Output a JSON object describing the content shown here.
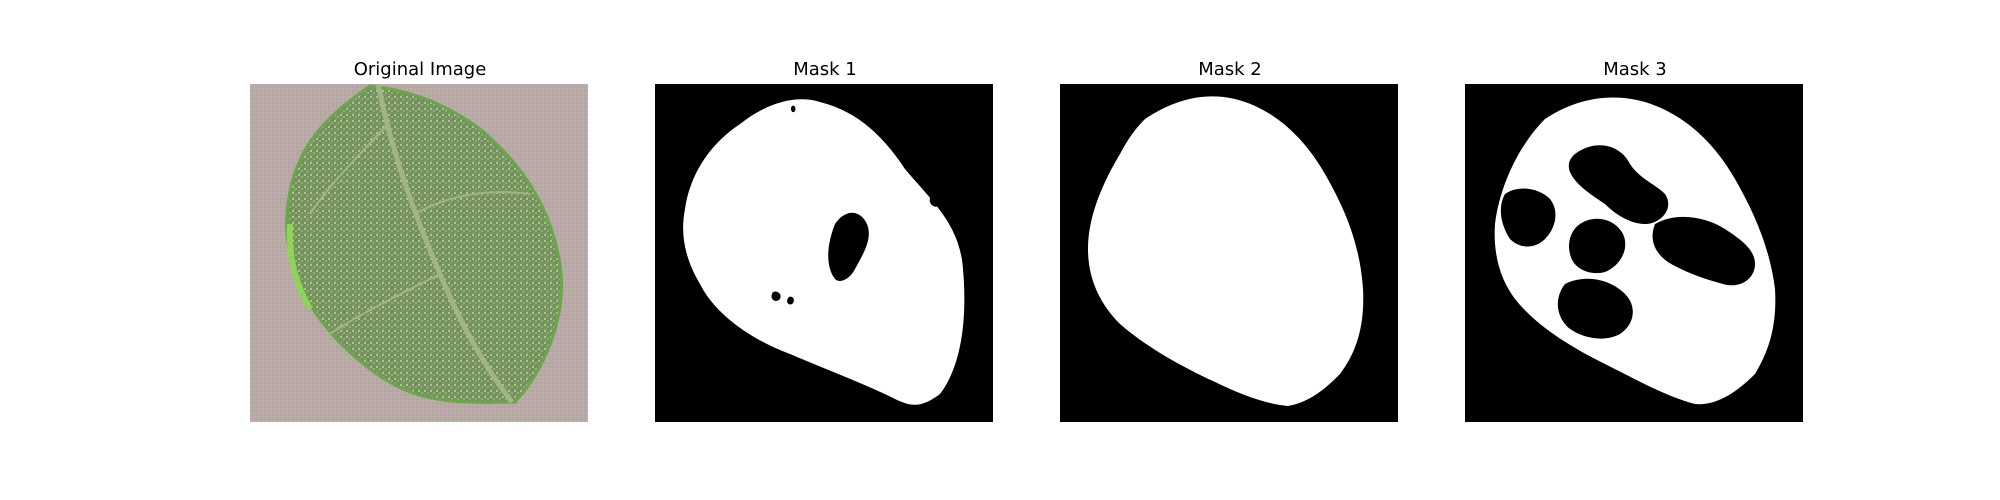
{
  "figure": {
    "panels": [
      {
        "title": "Original Image"
      },
      {
        "title": "Mask 1"
      },
      {
        "title": "Mask 2"
      },
      {
        "title": "Mask 3"
      }
    ]
  },
  "colors": {
    "background": "#ffffff",
    "mask_foreground": "#ffffff",
    "mask_background": "#000000",
    "original_background": "#b9a9a7",
    "leaf_green": "#78945e",
    "leaf_highlight": "#8fd35b"
  }
}
